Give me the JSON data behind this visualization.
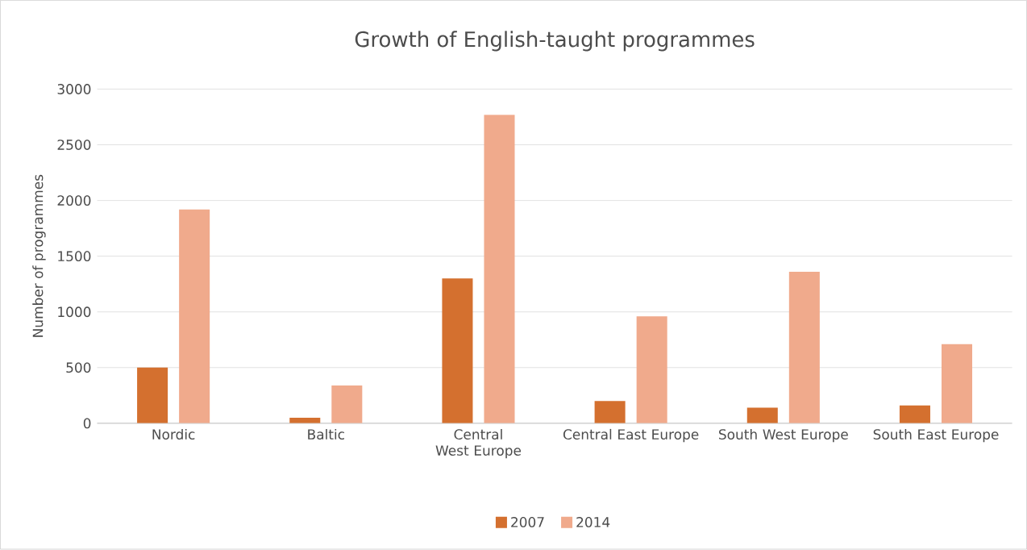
{
  "chart_data": {
    "type": "bar",
    "title": "Growth of English-taught programmes",
    "ylabel": "Number  of programmes",
    "categories": [
      "Nordic",
      "Baltic",
      "Central West Europe",
      "Central East Europe",
      "South West Europe",
      "South East Europe"
    ],
    "series": [
      {
        "name": "2007",
        "color": "#d4702f",
        "values": [
          500,
          50,
          1300,
          200,
          140,
          160
        ]
      },
      {
        "name": "2014",
        "color": "#f0aa8c",
        "values": [
          1920,
          340,
          2770,
          960,
          1360,
          710
        ]
      }
    ],
    "ylim": [
      0,
      3000
    ],
    "yticks": [
      0,
      500,
      1000,
      1500,
      2000,
      2500,
      3000
    ],
    "grid": "y",
    "legend": "bottom"
  }
}
